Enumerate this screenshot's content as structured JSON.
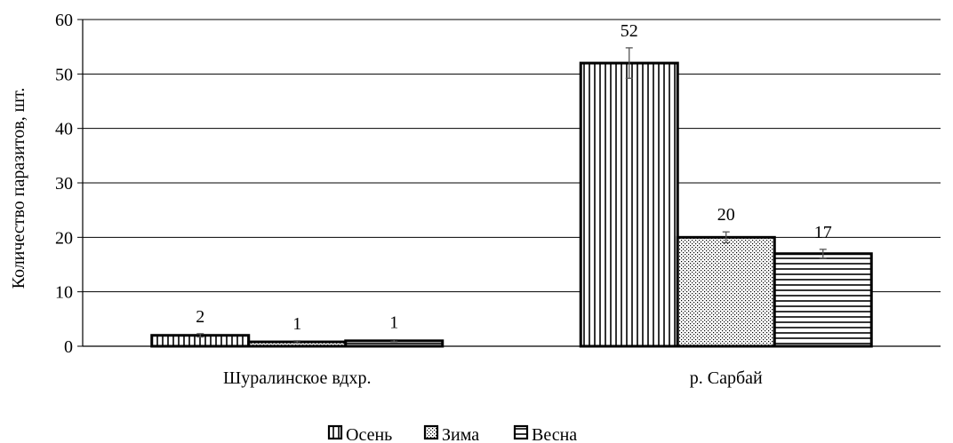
{
  "chart_data": {
    "type": "bar",
    "title": "",
    "xlabel": "",
    "ylabel": "Количество паразитов, шт.",
    "ylim": [
      0,
      60
    ],
    "yticks": [
      0,
      10,
      20,
      30,
      40,
      50,
      60
    ],
    "grid": true,
    "legend": "bottom",
    "categories": [
      "Шуралинское вдхр.",
      "р. Сарбай"
    ],
    "series": [
      {
        "name": "Осень",
        "pattern": "vertical-lines",
        "values": [
          2,
          52
        ],
        "errors": [
          0.3,
          2.8
        ],
        "labels": [
          "2",
          "52"
        ]
      },
      {
        "name": "Зима",
        "pattern": "dots",
        "values": [
          0.8,
          20
        ],
        "errors": [
          0.2,
          1.0
        ],
        "labels": [
          "1",
          "20"
        ]
      },
      {
        "name": "Весна",
        "pattern": "horizontal-lines",
        "values": [
          1,
          17
        ],
        "errors": [
          0.2,
          0.8
        ],
        "labels": [
          "1",
          "17"
        ]
      }
    ]
  }
}
